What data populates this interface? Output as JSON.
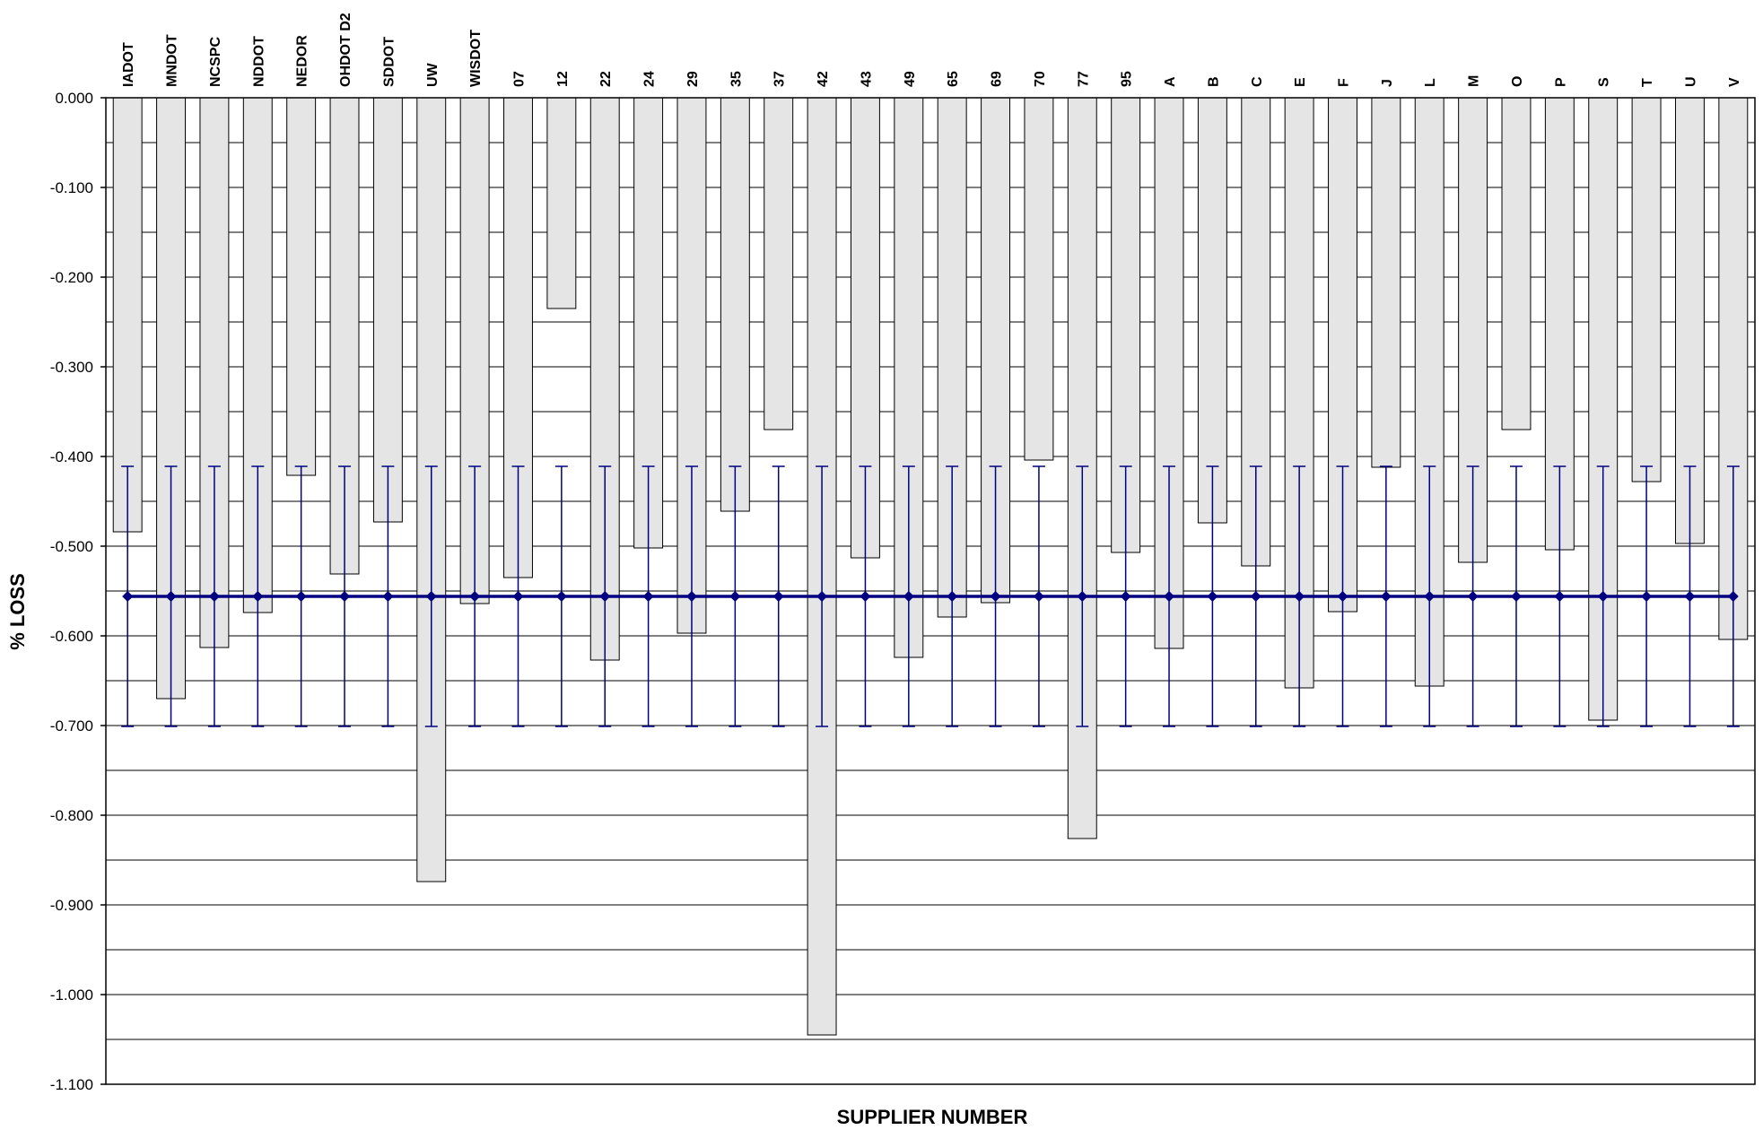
{
  "chart_data": {
    "type": "bar",
    "title": "",
    "xlabel": "SUPPLIER NUMBER",
    "ylabel": "% LOSS",
    "ylim": [
      -1.1,
      0.0
    ],
    "y_ticks": [
      "0.000",
      "-0.100",
      "-0.200",
      "-0.300",
      "-0.400",
      "-0.500",
      "-0.600",
      "-0.700",
      "-0.800",
      "-0.900",
      "-1.000",
      "-1.100"
    ],
    "y_tick_values": [
      0.0,
      -0.1,
      -0.2,
      -0.3,
      -0.4,
      -0.5,
      -0.6,
      -0.7,
      -0.8,
      -0.9,
      -1.0,
      -1.1
    ],
    "grid_minor_step": 0.05,
    "x_axis_position": "top",
    "bar_color": "#e5e5e5",
    "mean_color": "#000080",
    "categories": [
      "IADOT",
      "MNDOT",
      "NCSPC",
      "NDDOT",
      "NEDOR",
      "OHDOT D2",
      "SDDOT",
      "UW",
      "WISDOT",
      "07",
      "12",
      "22",
      "24",
      "29",
      "35",
      "37",
      "42",
      "43",
      "49",
      "65",
      "69",
      "70",
      "77",
      "95",
      "A",
      "B",
      "C",
      "E",
      "F",
      "J",
      "L",
      "M",
      "O",
      "P",
      "S",
      "T",
      "U",
      "V"
    ],
    "series": [
      {
        "type": "bar",
        "values": [
          -0.484,
          -0.67,
          -0.613,
          -0.574,
          -0.421,
          -0.531,
          -0.473,
          -0.874,
          -0.564,
          -0.535,
          -0.235,
          -0.627,
          -0.502,
          -0.597,
          -0.461,
          -0.37,
          -1.045,
          -0.513,
          -0.624,
          -0.579,
          -0.563,
          -0.404,
          -0.826,
          -0.507,
          -0.614,
          -0.474,
          -0.522,
          -0.658,
          -0.573,
          -0.412,
          -0.656,
          -0.518,
          -0.37,
          -0.504,
          -0.694,
          -0.428,
          -0.497,
          -0.604
        ]
      },
      {
        "type": "line",
        "mean": -0.556,
        "error_upper": -0.411,
        "error_lower": -0.701
      }
    ]
  }
}
